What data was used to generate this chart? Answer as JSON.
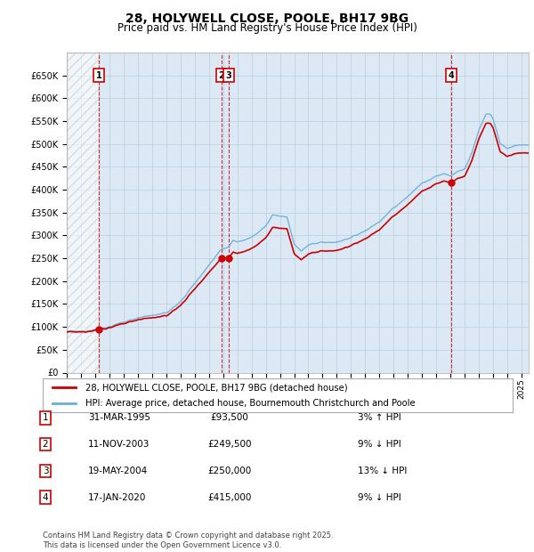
{
  "title": "28, HOLYWELL CLOSE, POOLE, BH17 9BG",
  "subtitle": "Price paid vs. HM Land Registry's House Price Index (HPI)",
  "ylim": [
    0,
    700000
  ],
  "yticks": [
    0,
    50000,
    100000,
    150000,
    200000,
    250000,
    300000,
    350000,
    400000,
    450000,
    500000,
    550000,
    600000,
    650000
  ],
  "xlim_start": 1993.0,
  "xlim_end": 2025.5,
  "sale_dates": [
    1995.25,
    2003.87,
    2004.38,
    2020.05
  ],
  "sale_prices": [
    93500,
    249500,
    250000,
    415000
  ],
  "sale_label_nums": [
    "1",
    "2",
    "3",
    "4"
  ],
  "vline_dates": [
    1995.25,
    2003.87,
    2004.38,
    2020.05
  ],
  "legend_line1": "28, HOLYWELL CLOSE, POOLE, BH17 9BG (detached house)",
  "legend_line2": "HPI: Average price, detached house, Bournemouth Christchurch and Poole",
  "table_rows": [
    {
      "num": "1",
      "date": "31-MAR-1995",
      "price": "£93,500",
      "rel": "3% ↑ HPI"
    },
    {
      "num": "2",
      "date": "11-NOV-2003",
      "price": "£249,500",
      "rel": "9% ↓ HPI"
    },
    {
      "num": "3",
      "date": "19-MAY-2004",
      "price": "£250,000",
      "rel": "13% ↓ HPI"
    },
    {
      "num": "4",
      "date": "17-JAN-2020",
      "price": "£415,000",
      "rel": "9% ↓ HPI"
    }
  ],
  "footnote": "Contains HM Land Registry data © Crown copyright and database right 2025.\nThis data is licensed under the Open Government Licence v3.0.",
  "hpi_color": "#6baed6",
  "price_color": "#cc0000",
  "vline_color": "#cc0000",
  "bg_color": "#ffffff",
  "chart_bg": "#dce9f5",
  "grid_color": "#b8cfe0"
}
